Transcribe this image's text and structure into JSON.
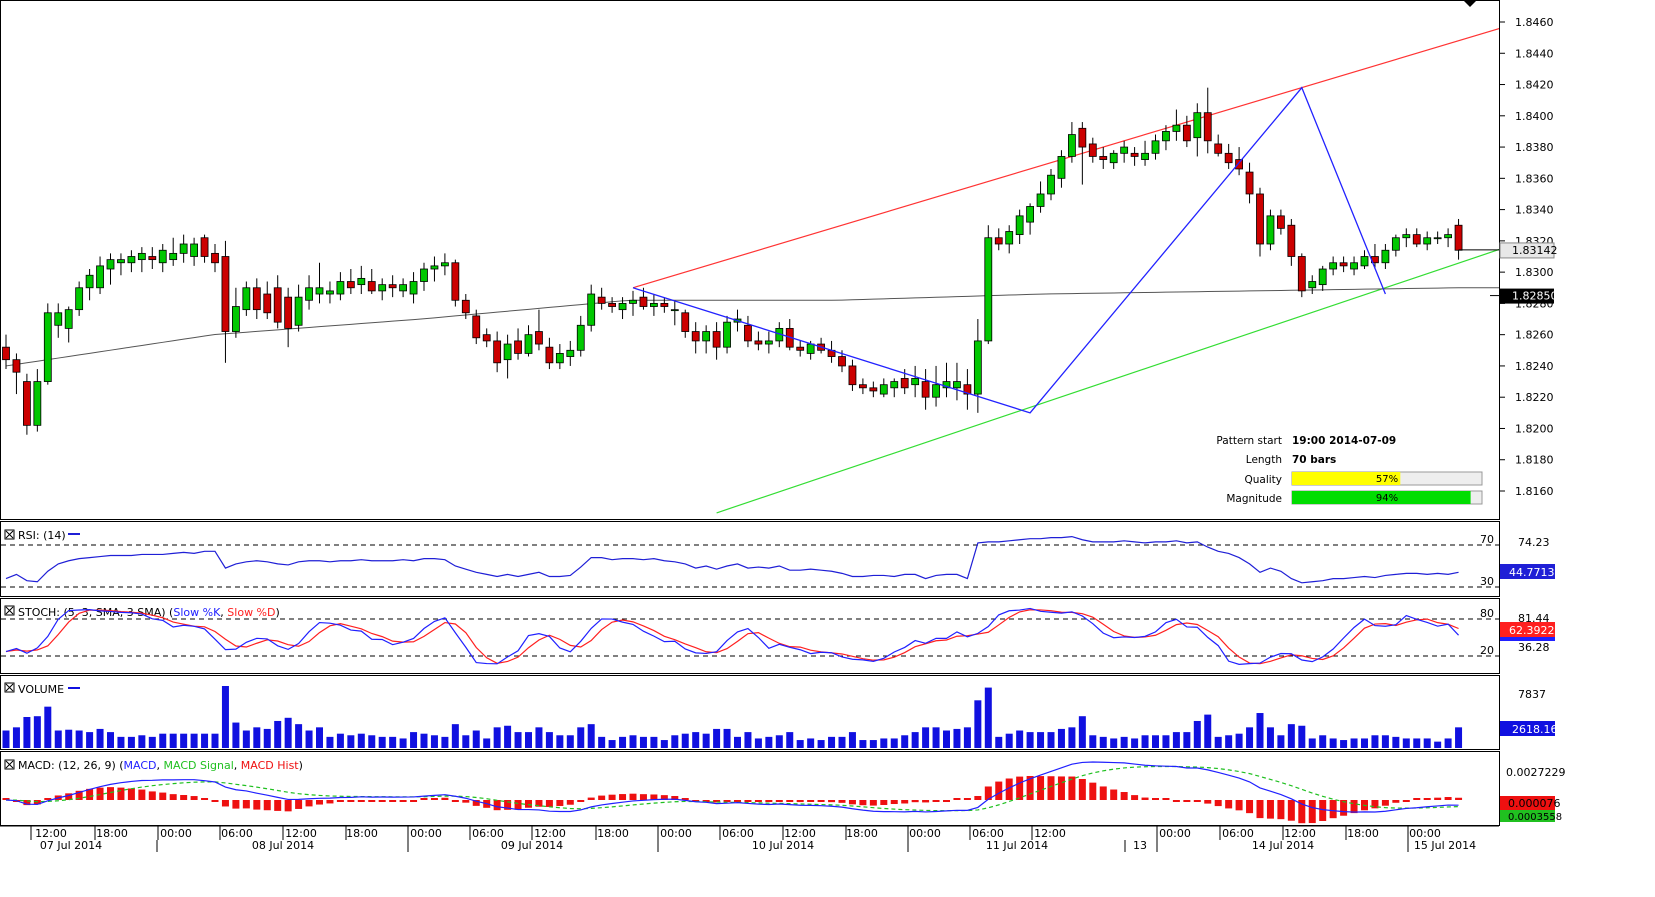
{
  "colors": {
    "background": "#ffffff",
    "bull": "#00c800",
    "bear": "#cc0000",
    "sma": "#555555",
    "channel_top": "#ff3333",
    "channel_bottom": "#33dd33",
    "pattern_line": "#2222ff",
    "price_tag_bg": "#e8e8e8",
    "rsi_line": "#1f1fd6",
    "stoch_k": "#2020ff",
    "stoch_d": "#ff2020",
    "volume": "#1010e0",
    "macd": "#2020ff",
    "macd_signal": "#20c020",
    "macd_hist": "#ee1010",
    "quality_bar": "#ffff00",
    "magnitude_bar": "#00dd00"
  },
  "price_axis": {
    "ticks": [
      "1.8460",
      "1.8440",
      "1.8420",
      "1.8400",
      "1.8380",
      "1.8360",
      "1.8340",
      "1.8320",
      "1.8300",
      "1.8280",
      "1.8260",
      "1.8240",
      "1.8220",
      "1.8200",
      "1.8180",
      "1.8160"
    ],
    "current_price": "1.83142",
    "sma_price": "1.82850"
  },
  "time_axis": {
    "hours": [
      "12:00",
      "18:00",
      "00:00",
      "06:00",
      "12:00",
      "18:00",
      "00:00",
      "06:00",
      "12:00",
      "18:00",
      "00:00",
      "06:00",
      "12:00",
      "18:00",
      "00:00",
      "06:00",
      "12:00",
      "00:00",
      "06:00",
      "12:00",
      "18:00",
      "00:00"
    ],
    "dates": [
      "07 Jul 2014",
      "08 Jul 2014",
      "09 Jul 2014",
      "10 Jul 2014",
      "11 Jul 2014",
      "13",
      "14 Jul 2014",
      "15 Jul 2014"
    ]
  },
  "pattern_info": {
    "labels": [
      "Pattern start",
      "Length",
      "Quality",
      "Magnitude"
    ],
    "start": "19:00 2014-07-09",
    "length": "70 bars",
    "quality_text": "57%",
    "quality": 0.57,
    "magnitude_text": "94%",
    "magnitude": 0.94
  },
  "panels": {
    "rsi": {
      "title": "RSI: (14)",
      "levels": [
        "70",
        "30"
      ],
      "scale_top": "74.23",
      "current": "44.77136"
    },
    "stoch": {
      "title_prefix": "STOCH: (5, 3, SMA, 3 SMA) (",
      "k_label": "Slow %K",
      "sep": ", ",
      "d_label": "Slow %D",
      "title_suffix": ")",
      "levels": [
        "80",
        "20"
      ],
      "scale_top": "81.44",
      "scale_low": "36.28",
      "current": "62.39226"
    },
    "volume": {
      "title": "VOLUME",
      "scale_top": "7837",
      "current": "2618.16"
    },
    "macd": {
      "title_prefix": "MACD: (12, 26, 9) (",
      "macd_label": "MACD",
      "sep": ", ",
      "signal_label": "MACD Signal",
      "hist_label": "MACD Hist",
      "title_suffix": ")",
      "scale_top": "0.0027229",
      "current": "0.000076",
      "current2": "0.0003558"
    }
  },
  "chart_data": {
    "type": "candlestick",
    "symbol": "",
    "ylim": [
      1.8145,
      1.847
    ],
    "candles": [
      [
        1.8252,
        1.826,
        1.8238,
        1.8244
      ],
      [
        1.8244,
        1.8248,
        1.8222,
        1.8236
      ],
      [
        1.823,
        1.8235,
        1.8196,
        1.8202
      ],
      [
        1.8202,
        1.8238,
        1.8198,
        1.823
      ],
      [
        1.823,
        1.828,
        1.8228,
        1.8274
      ],
      [
        1.8266,
        1.828,
        1.8258,
        1.8274
      ],
      [
        1.8264,
        1.8278,
        1.8255,
        1.8276
      ],
      [
        1.8276,
        1.8294,
        1.8272,
        1.829
      ],
      [
        1.829,
        1.8302,
        1.8282,
        1.8298
      ],
      [
        1.829,
        1.831,
        1.8286,
        1.8304
      ],
      [
        1.8302,
        1.8312,
        1.8292,
        1.8308
      ],
      [
        1.8306,
        1.8312,
        1.8298,
        1.8308
      ],
      [
        1.8306,
        1.8314,
        1.83,
        1.831
      ],
      [
        1.8308,
        1.8316,
        1.83,
        1.8312
      ],
      [
        1.831,
        1.8316,
        1.8302,
        1.8308
      ],
      [
        1.8306,
        1.8318,
        1.83,
        1.8314
      ],
      [
        1.8308,
        1.8322,
        1.8304,
        1.8312
      ],
      [
        1.8312,
        1.8324,
        1.8306,
        1.8318
      ],
      [
        1.831,
        1.8322,
        1.8304,
        1.8318
      ],
      [
        1.8322,
        1.8324,
        1.8306,
        1.831
      ],
      [
        1.8312,
        1.8318,
        1.83,
        1.8306
      ],
      [
        1.831,
        1.832,
        1.8242,
        1.8262
      ],
      [
        1.8262,
        1.829,
        1.8258,
        1.8278
      ],
      [
        1.8276,
        1.8294,
        1.8272,
        1.829
      ],
      [
        1.829,
        1.8296,
        1.827,
        1.8276
      ],
      [
        1.8286,
        1.8294,
        1.827,
        1.8274
      ],
      [
        1.829,
        1.8298,
        1.8264,
        1.8268
      ],
      [
        1.8284,
        1.829,
        1.8252,
        1.8264
      ],
      [
        1.8266,
        1.8292,
        1.8262,
        1.8284
      ],
      [
        1.8282,
        1.8298,
        1.8276,
        1.829
      ],
      [
        1.8286,
        1.8306,
        1.828,
        1.829
      ],
      [
        1.8286,
        1.8294,
        1.828,
        1.8288
      ],
      [
        1.8286,
        1.83,
        1.8282,
        1.8294
      ],
      [
        1.8294,
        1.8302,
        1.8286,
        1.829
      ],
      [
        1.8292,
        1.8304,
        1.8286,
        1.8296
      ],
      [
        1.8294,
        1.8302,
        1.8286,
        1.8288
      ],
      [
        1.8288,
        1.8296,
        1.8282,
        1.8292
      ],
      [
        1.8292,
        1.8298,
        1.8284,
        1.829
      ],
      [
        1.8288,
        1.8296,
        1.8284,
        1.8292
      ],
      [
        1.8286,
        1.83,
        1.828,
        1.8294
      ],
      [
        1.8294,
        1.8306,
        1.8288,
        1.8302
      ],
      [
        1.8302,
        1.831,
        1.8294,
        1.8304
      ],
      [
        1.8304,
        1.8312,
        1.8298,
        1.8306
      ],
      [
        1.8306,
        1.8308,
        1.8278,
        1.8282
      ],
      [
        1.8282,
        1.8286,
        1.827,
        1.8274
      ],
      [
        1.8272,
        1.8276,
        1.8254,
        1.8258
      ],
      [
        1.826,
        1.8264,
        1.8252,
        1.8256
      ],
      [
        1.8256,
        1.8262,
        1.8236,
        1.8242
      ],
      [
        1.8244,
        1.826,
        1.8232,
        1.8254
      ],
      [
        1.8256,
        1.8264,
        1.8244,
        1.8248
      ],
      [
        1.8248,
        1.8266,
        1.8246,
        1.826
      ],
      [
        1.8262,
        1.8276,
        1.825,
        1.8254
      ],
      [
        1.8252,
        1.8258,
        1.8238,
        1.8242
      ],
      [
        1.8242,
        1.8254,
        1.8238,
        1.8248
      ],
      [
        1.8246,
        1.8256,
        1.824,
        1.825
      ],
      [
        1.825,
        1.8272,
        1.8246,
        1.8266
      ],
      [
        1.8266,
        1.8292,
        1.8262,
        1.8286
      ],
      [
        1.8284,
        1.829,
        1.8276,
        1.828
      ],
      [
        1.828,
        1.8284,
        1.8274,
        1.8278
      ],
      [
        1.8276,
        1.8284,
        1.827,
        1.828
      ],
      [
        1.828,
        1.8288,
        1.8272,
        1.8282
      ],
      [
        1.8284,
        1.829,
        1.8276,
        1.8278
      ],
      [
        1.8278,
        1.8286,
        1.8272,
        1.828
      ],
      [
        1.828,
        1.8284,
        1.8274,
        1.8278
      ],
      [
        1.8276,
        1.8282,
        1.8266,
        1.8276
      ],
      [
        1.8274,
        1.8276,
        1.8258,
        1.8262
      ],
      [
        1.8262,
        1.8268,
        1.8248,
        1.8256
      ],
      [
        1.8256,
        1.8266,
        1.8248,
        1.8262
      ],
      [
        1.8262,
        1.8268,
        1.8244,
        1.8252
      ],
      [
        1.8252,
        1.8272,
        1.8248,
        1.8268
      ],
      [
        1.8268,
        1.8276,
        1.8262,
        1.827
      ],
      [
        1.8266,
        1.8272,
        1.8252,
        1.8256
      ],
      [
        1.8256,
        1.8262,
        1.825,
        1.8254
      ],
      [
        1.8254,
        1.8262,
        1.8248,
        1.8256
      ],
      [
        1.8256,
        1.8268,
        1.8252,
        1.8264
      ],
      [
        1.8264,
        1.827,
        1.825,
        1.8252
      ],
      [
        1.8252,
        1.8256,
        1.8246,
        1.825
      ],
      [
        1.8248,
        1.8256,
        1.8244,
        1.8254
      ],
      [
        1.8254,
        1.8258,
        1.8248,
        1.825
      ],
      [
        1.825,
        1.8256,
        1.8242,
        1.8246
      ],
      [
        1.8246,
        1.825,
        1.8236,
        1.824
      ],
      [
        1.824,
        1.8244,
        1.8224,
        1.8228
      ],
      [
        1.8228,
        1.8232,
        1.8222,
        1.8226
      ],
      [
        1.8226,
        1.823,
        1.822,
        1.8224
      ],
      [
        1.8222,
        1.8232,
        1.822,
        1.8228
      ],
      [
        1.8226,
        1.8232,
        1.822,
        1.823
      ],
      [
        1.8232,
        1.8238,
        1.8222,
        1.8226
      ],
      [
        1.8228,
        1.824,
        1.822,
        1.8232
      ],
      [
        1.823,
        1.8238,
        1.8212,
        1.822
      ],
      [
        1.822,
        1.824,
        1.8214,
        1.8228
      ],
      [
        1.8226,
        1.8242,
        1.822,
        1.823
      ],
      [
        1.8226,
        1.8242,
        1.8218,
        1.823
      ],
      [
        1.8228,
        1.8238,
        1.8212,
        1.8222
      ],
      [
        1.8222,
        1.827,
        1.821,
        1.8256
      ],
      [
        1.8256,
        1.833,
        1.8254,
        1.8322
      ],
      [
        1.8322,
        1.8328,
        1.8314,
        1.8318
      ],
      [
        1.8318,
        1.833,
        1.8312,
        1.8326
      ],
      [
        1.8324,
        1.834,
        1.8318,
        1.8336
      ],
      [
        1.8332,
        1.8344,
        1.8324,
        1.8342
      ],
      [
        1.8342,
        1.8358,
        1.8338,
        1.835
      ],
      [
        1.835,
        1.8366,
        1.8346,
        1.8362
      ],
      [
        1.836,
        1.8378,
        1.8354,
        1.8374
      ],
      [
        1.8374,
        1.8396,
        1.837,
        1.8388
      ],
      [
        1.8392,
        1.8396,
        1.8356,
        1.838
      ],
      [
        1.8382,
        1.8386,
        1.837,
        1.8374
      ],
      [
        1.8374,
        1.838,
        1.8366,
        1.8372
      ],
      [
        1.837,
        1.8378,
        1.8366,
        1.8376
      ],
      [
        1.8376,
        1.8384,
        1.837,
        1.838
      ],
      [
        1.8376,
        1.838,
        1.8368,
        1.8374
      ],
      [
        1.8372,
        1.8384,
        1.8368,
        1.8376
      ],
      [
        1.8376,
        1.8388,
        1.8372,
        1.8384
      ],
      [
        1.8384,
        1.8394,
        1.8378,
        1.839
      ],
      [
        1.839,
        1.8404,
        1.8384,
        1.8394
      ],
      [
        1.8394,
        1.84,
        1.838,
        1.8384
      ],
      [
        1.8386,
        1.8408,
        1.8374,
        1.8402
      ],
      [
        1.8402,
        1.8418,
        1.8376,
        1.8384
      ],
      [
        1.8382,
        1.8388,
        1.8374,
        1.8376
      ],
      [
        1.8376,
        1.8382,
        1.8366,
        1.837
      ],
      [
        1.8372,
        1.838,
        1.8362,
        1.8366
      ],
      [
        1.8364,
        1.837,
        1.8344,
        1.835
      ],
      [
        1.835,
        1.8354,
        1.831,
        1.8318
      ],
      [
        1.8318,
        1.834,
        1.8314,
        1.8336
      ],
      [
        1.8336,
        1.834,
        1.8324,
        1.8328
      ],
      [
        1.833,
        1.8334,
        1.8304,
        1.831
      ],
      [
        1.831,
        1.8312,
        1.8284,
        1.8288
      ],
      [
        1.829,
        1.8298,
        1.8286,
        1.8294
      ],
      [
        1.8292,
        1.8304,
        1.8288,
        1.8302
      ],
      [
        1.8302,
        1.831,
        1.8298,
        1.8306
      ],
      [
        1.8306,
        1.831,
        1.83,
        1.8304
      ],
      [
        1.8302,
        1.831,
        1.8298,
        1.8306
      ],
      [
        1.8304,
        1.8314,
        1.8302,
        1.831
      ],
      [
        1.831,
        1.8318,
        1.8302,
        1.8306
      ],
      [
        1.8306,
        1.8318,
        1.8302,
        1.8314
      ],
      [
        1.8314,
        1.8324,
        1.831,
        1.8322
      ],
      [
        1.8322,
        1.8328,
        1.8316,
        1.8324
      ],
      [
        1.8324,
        1.8328,
        1.8316,
        1.8318
      ],
      [
        1.8318,
        1.8326,
        1.8314,
        1.8322
      ],
      [
        1.8322,
        1.8326,
        1.8318,
        1.8322
      ],
      [
        1.8322,
        1.8328,
        1.8316,
        1.8324
      ],
      [
        1.833,
        1.8334,
        1.8308,
        1.8314
      ]
    ],
    "sma": [
      1.824,
      1.826,
      1.827,
      1.8282,
      1.8282,
      1.8286,
      1.8288,
      1.829
    ],
    "channel_top": {
      "from": [
        1.829,
        60
      ],
      "to": [
        1.8466,
        148
      ]
    },
    "channel_bottom": {
      "from": [
        1.8146,
        68
      ],
      "to": [
        1.8326,
        148
      ]
    },
    "pattern_line": [
      [
        60,
        1.829
      ],
      [
        98,
        1.821
      ],
      [
        124,
        1.8418
      ],
      [
        132,
        1.8286
      ]
    ],
    "rsi": [
      38,
      42,
      36,
      35,
      45,
      52,
      55,
      57,
      58,
      59,
      60,
      60,
      60,
      61,
      61,
      61,
      62,
      63,
      62,
      64,
      64,
      48,
      52,
      54,
      55,
      54,
      52,
      51,
      54,
      55,
      55,
      54,
      55,
      55,
      56,
      55,
      55,
      55,
      56,
      55,
      57,
      57,
      56,
      50,
      47,
      44,
      42,
      40,
      42,
      40,
      42,
      44,
      40,
      40,
      41,
      49,
      58,
      58,
      56,
      57,
      57,
      56,
      57,
      55,
      54,
      52,
      48,
      50,
      47,
      50,
      52,
      48,
      49,
      48,
      50,
      46,
      46,
      47,
      46,
      45,
      43,
      40,
      40,
      41,
      41,
      40,
      42,
      42,
      38,
      41,
      42,
      42,
      38,
      72,
      73,
      73,
      74,
      75,
      76,
      76,
      77,
      77,
      78,
      75,
      73,
      73,
      73,
      74,
      73,
      72,
      73,
      73,
      74,
      72,
      73,
      68,
      64,
      62,
      58,
      52,
      44,
      48,
      45,
      38,
      34,
      35,
      36,
      38,
      38,
      39,
      40,
      39,
      41,
      42,
      43,
      43,
      42,
      43,
      42,
      44
    ]
  }
}
